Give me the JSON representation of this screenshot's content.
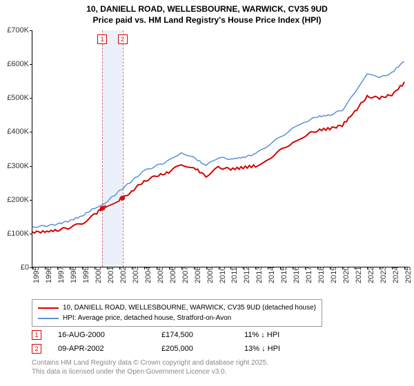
{
  "title": {
    "line1": "10, DANIELL ROAD, WELLESBOURNE, WARWICK, CV35 9UD",
    "line2": "Price paid vs. HM Land Registry's House Price Index (HPI)"
  },
  "chart": {
    "type": "line",
    "background_color": "#ffffff",
    "x_years": [
      1995,
      1996,
      1997,
      1998,
      1999,
      2000,
      2001,
      2002,
      2003,
      2004,
      2005,
      2006,
      2007,
      2008,
      2009,
      2010,
      2011,
      2012,
      2013,
      2014,
      2015,
      2016,
      2017,
      2018,
      2019,
      2020,
      2021,
      2022,
      2023,
      2024,
      2025
    ],
    "xlim": [
      1995,
      2025.5
    ],
    "ylim": [
      0,
      700000
    ],
    "ytick_step": 100000,
    "ytick_labels": [
      "£0",
      "£100K",
      "£200K",
      "£300K",
      "£400K",
      "£500K",
      "£600K",
      "£700K"
    ],
    "series": [
      {
        "name": "10, DANIELL ROAD, WELLESBOURNE, WARWICK, CV35 9UD (detached house)",
        "color": "#d40000",
        "line_width": 2,
        "points": [
          [
            1995,
            105000
          ],
          [
            1996,
            105000
          ],
          [
            1997,
            110000
          ],
          [
            1998,
            118000
          ],
          [
            1999,
            130000
          ],
          [
            2000,
            155000
          ],
          [
            2000.6,
            174500
          ],
          [
            2001,
            180000
          ],
          [
            2002,
            200000
          ],
          [
            2002.27,
            205000
          ],
          [
            2003,
            225000
          ],
          [
            2004,
            255000
          ],
          [
            2005,
            270000
          ],
          [
            2006,
            280000
          ],
          [
            2007,
            305000
          ],
          [
            2008,
            295000
          ],
          [
            2009,
            270000
          ],
          [
            2010,
            295000
          ],
          [
            2011,
            290000
          ],
          [
            2012,
            295000
          ],
          [
            2013,
            300000
          ],
          [
            2014,
            320000
          ],
          [
            2015,
            345000
          ],
          [
            2016,
            370000
          ],
          [
            2017,
            390000
          ],
          [
            2018,
            405000
          ],
          [
            2019,
            410000
          ],
          [
            2020,
            420000
          ],
          [
            2021,
            460000
          ],
          [
            2022,
            505000
          ],
          [
            2023,
            500000
          ],
          [
            2024,
            510000
          ],
          [
            2025,
            545000
          ]
        ]
      },
      {
        "name": "HPI: Average price, detached house, Stratford-on-Avon",
        "color": "#5b8fd6",
        "line_width": 1.5,
        "points": [
          [
            1995,
            120000
          ],
          [
            1996,
            122000
          ],
          [
            1997,
            128000
          ],
          [
            1998,
            138000
          ],
          [
            1999,
            152000
          ],
          [
            2000,
            175000
          ],
          [
            2001,
            195000
          ],
          [
            2002,
            225000
          ],
          [
            2003,
            255000
          ],
          [
            2004,
            285000
          ],
          [
            2005,
            300000
          ],
          [
            2006,
            315000
          ],
          [
            2007,
            340000
          ],
          [
            2008,
            325000
          ],
          [
            2009,
            300000
          ],
          [
            2010,
            325000
          ],
          [
            2011,
            320000
          ],
          [
            2012,
            325000
          ],
          [
            2013,
            335000
          ],
          [
            2014,
            360000
          ],
          [
            2015,
            385000
          ],
          [
            2016,
            410000
          ],
          [
            2017,
            430000
          ],
          [
            2018,
            445000
          ],
          [
            2019,
            450000
          ],
          [
            2020,
            465000
          ],
          [
            2021,
            515000
          ],
          [
            2022,
            570000
          ],
          [
            2023,
            560000
          ],
          [
            2024,
            575000
          ],
          [
            2025,
            610000
          ]
        ]
      }
    ],
    "sale_markers": [
      {
        "n": "1",
        "x": 2000.63,
        "y": 174500,
        "color": "#d40000"
      },
      {
        "n": "2",
        "x": 2002.27,
        "y": 205000,
        "color": "#d40000"
      }
    ],
    "shade": {
      "from": 2000.63,
      "to": 2002.27,
      "color": "rgba(120,160,220,0.15)"
    },
    "top_marker_boxes": [
      {
        "n": "1",
        "x": 2000.63,
        "color": "#d40000"
      },
      {
        "n": "2",
        "x": 2002.27,
        "color": "#d40000"
      }
    ]
  },
  "legend": {
    "border_color": "#999999"
  },
  "sales": [
    {
      "n": "1",
      "date": "16-AUG-2000",
      "price": "£174,500",
      "hpi": "11% ↓ HPI",
      "color": "#d40000"
    },
    {
      "n": "2",
      "date": "09-APR-2002",
      "price": "£205,000",
      "hpi": "13% ↓ HPI",
      "color": "#d40000"
    }
  ],
  "footer": {
    "line1": "Contains HM Land Registry data © Crown copyright and database right 2025.",
    "line2": "This data is licensed under the Open Government Licence v3.0."
  }
}
